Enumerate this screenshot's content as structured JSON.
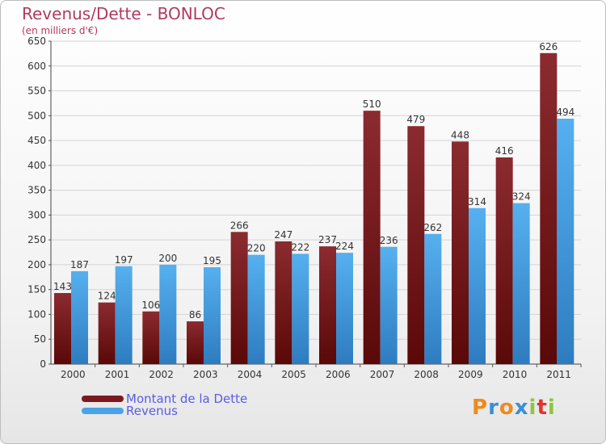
{
  "chart_data": {
    "type": "bar",
    "title": "Revenus/Dette - BONLOC",
    "subtitle": "(en milliers d'€)",
    "categories": [
      "2000",
      "2001",
      "2002",
      "2003",
      "2004",
      "2005",
      "2006",
      "2007",
      "2008",
      "2009",
      "2010",
      "2011"
    ],
    "series": [
      {
        "name": "Montant de la Dette",
        "color": "#7a1a1f",
        "values": [
          143,
          124,
          106,
          86,
          266,
          247,
          237,
          510,
          479,
          448,
          416,
          626
        ]
      },
      {
        "name": "Revenus",
        "color": "#4aa3e6",
        "values": [
          187,
          197,
          200,
          195,
          220,
          222,
          224,
          236,
          262,
          314,
          324,
          494
        ]
      }
    ],
    "ylim": [
      0,
      650
    ],
    "yticks": [
      0,
      50,
      100,
      150,
      200,
      250,
      300,
      350,
      400,
      450,
      500,
      550,
      600,
      650
    ],
    "grid": true,
    "legend_position": "bottom-left"
  },
  "logo": {
    "text": "Proxiti",
    "letters": [
      {
        "ch": "P",
        "color": "#f08a1c"
      },
      {
        "ch": "r",
        "color": "#3a8fd8"
      },
      {
        "ch": "o",
        "color": "#f08a1c"
      },
      {
        "ch": "x",
        "color": "#3a8fd8"
      },
      {
        "ch": "i",
        "color": "#8cc63f"
      },
      {
        "ch": "t",
        "color": "#e0342f"
      },
      {
        "ch": "i",
        "color": "#8cc63f"
      }
    ]
  }
}
